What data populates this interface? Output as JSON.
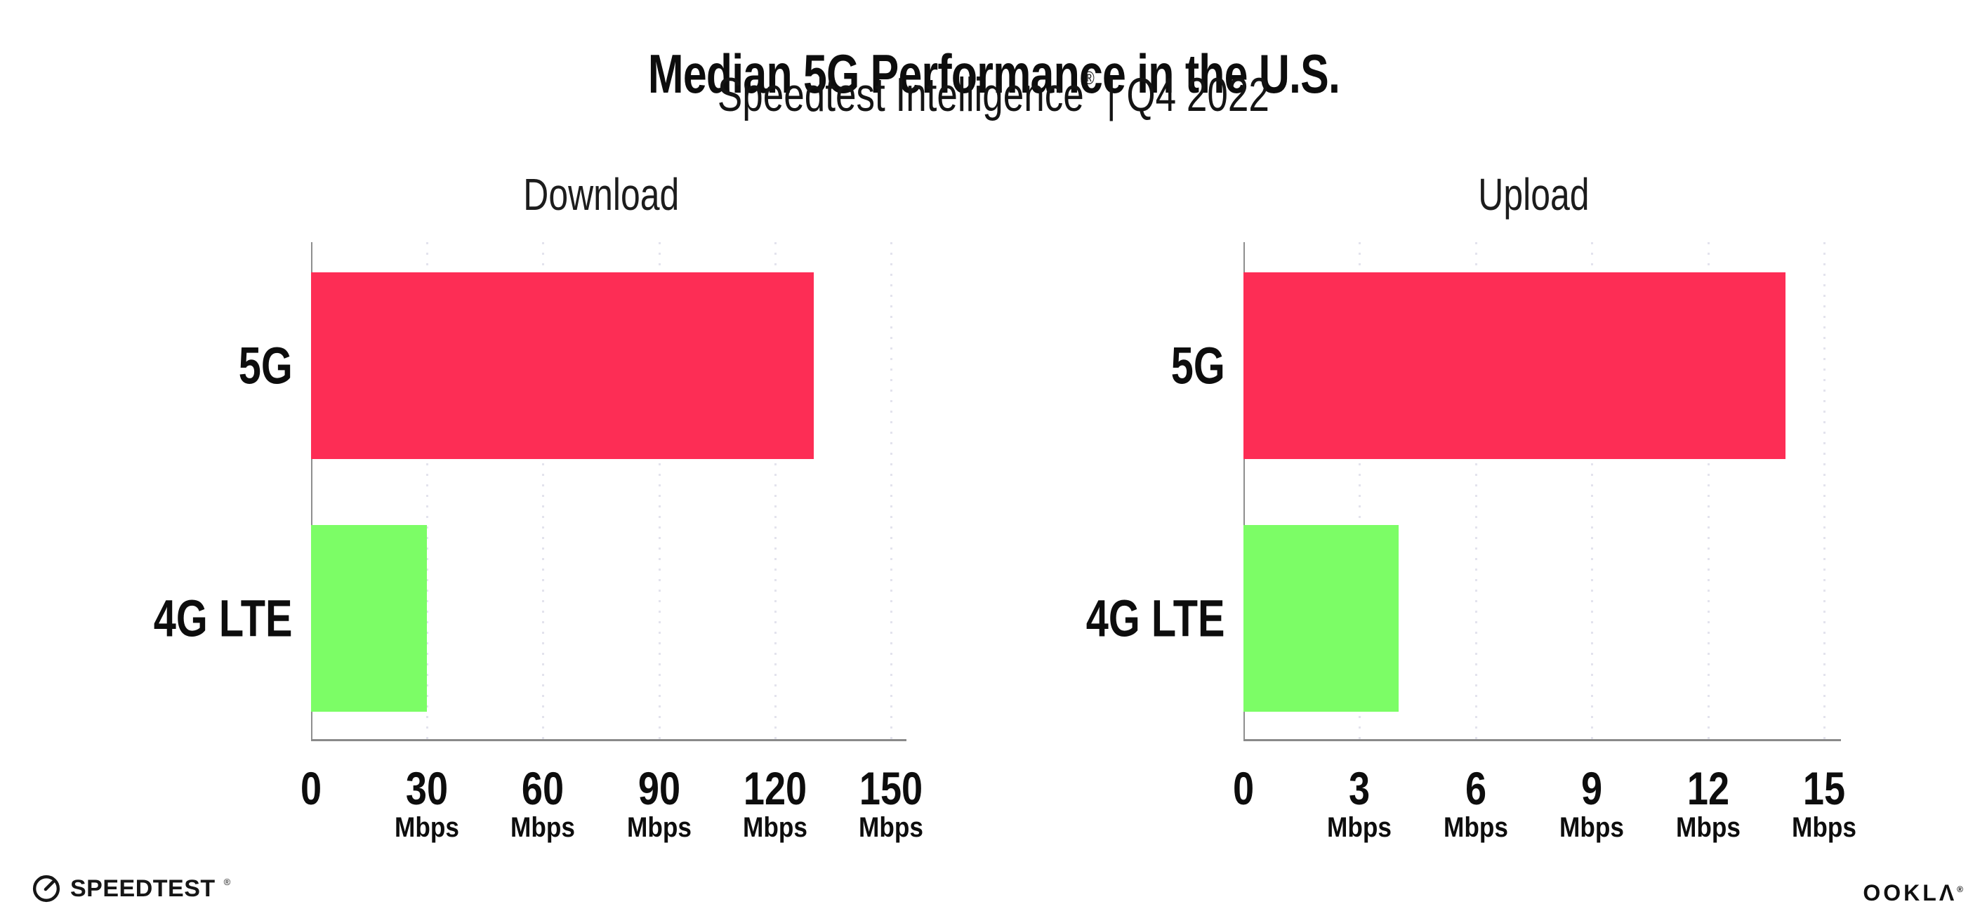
{
  "header": {
    "title": "Median 5G Performance in the U.S.",
    "subtitle_product": "Speedtest Intelligence",
    "subtitle_reg": "®",
    "subtitle_rest": "| Q4 2022"
  },
  "chart_data": [
    {
      "type": "bar",
      "orientation": "horizontal",
      "title": "Download",
      "categories": [
        "5G",
        "4G LTE"
      ],
      "values": [
        130,
        30
      ],
      "unit": "Mbps",
      "xlim": [
        0,
        150
      ],
      "xticks": [
        0,
        30,
        60,
        90,
        120,
        150
      ],
      "bar_colors": [
        "#fd2d55",
        "#7cfd66"
      ],
      "grid": "dotted-vertical",
      "legend": "none"
    },
    {
      "type": "bar",
      "orientation": "horizontal",
      "title": "Upload",
      "categories": [
        "5G",
        "4G LTE"
      ],
      "values": [
        14,
        4
      ],
      "unit": "Mbps",
      "xlim": [
        0,
        15
      ],
      "xticks": [
        0,
        3,
        6,
        9,
        12,
        15
      ],
      "bar_colors": [
        "#fd2d55",
        "#7cfd66"
      ],
      "grid": "dotted-vertical",
      "legend": "none"
    }
  ],
  "footer": {
    "speedtest_label": "SPEEDTEST",
    "speedtest_mark": "®",
    "ookla_label": "OOKLΛ",
    "ookla_mark": "®"
  },
  "colors": {
    "accent_pink": "#fd2d55",
    "accent_green": "#7cfd66",
    "axis": "#8a8a8a",
    "grid_dots": "#e3e3ed",
    "text": "#111111"
  }
}
